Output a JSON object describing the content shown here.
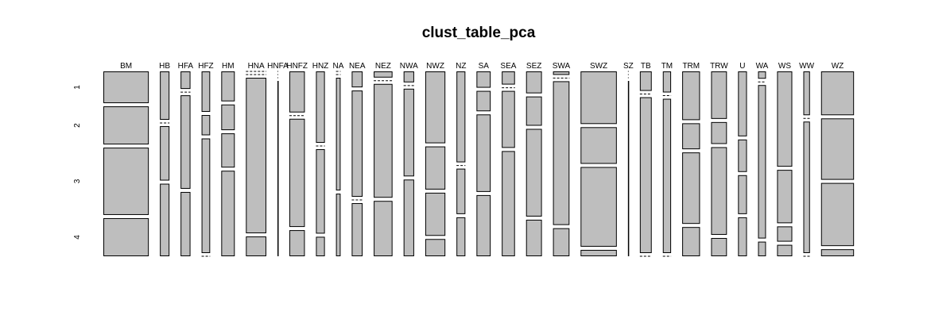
{
  "chart_data": {
    "type": "mosaic",
    "title": "clust_table_pca",
    "rows": [
      "1",
      "2",
      "3",
      "4"
    ],
    "columns": [
      {
        "name": "BM",
        "values": [
          25,
          30,
          53,
          30
        ]
      },
      {
        "name": "HB",
        "values": [
          8,
          0,
          9,
          12
        ]
      },
      {
        "name": "HFA",
        "values": [
          3,
          0,
          16,
          11
        ]
      },
      {
        "name": "HFZ",
        "values": [
          6,
          3,
          17,
          0
        ]
      },
      {
        "name": "HM",
        "values": [
          7,
          6,
          8,
          20
        ]
      },
      {
        "name": "HNA",
        "values": [
          0,
          0,
          55,
          7
        ]
      },
      {
        "name": "HNFA",
        "values": [
          0,
          0,
          0,
          1
        ]
      },
      {
        "name": "HNFZ",
        "values": [
          11,
          0,
          29,
          7
        ]
      },
      {
        "name": "HNZ",
        "values": [
          11,
          0,
          13,
          3
        ]
      },
      {
        "name": "NA",
        "values": [
          0,
          0,
          9,
          5
        ]
      },
      {
        "name": "NEA",
        "values": [
          3,
          20,
          0,
          10
        ]
      },
      {
        "name": "NEZ",
        "values": [
          2,
          0,
          37,
          18
        ]
      },
      {
        "name": "NWA",
        "values": [
          2,
          0,
          16,
          14
        ]
      },
      {
        "name": "NWZ",
        "values": [
          25,
          15,
          15,
          6
        ]
      },
      {
        "name": "NZ",
        "values": [
          14,
          0,
          7,
          6
        ]
      },
      {
        "name": "SA",
        "values": [
          4,
          5,
          19,
          15
        ]
      },
      {
        "name": "SEA",
        "values": [
          3,
          0,
          13,
          24
        ]
      },
      {
        "name": "SEZ",
        "values": [
          6,
          8,
          24,
          10
        ]
      },
      {
        "name": "SWA",
        "values": [
          1,
          0,
          41,
          8
        ]
      },
      {
        "name": "SWZ",
        "values": [
          33,
          23,
          50,
          4
        ]
      },
      {
        "name": "SZ",
        "values": [
          0,
          0,
          0,
          1
        ]
      },
      {
        "name": "TB",
        "values": [
          4,
          0,
          32,
          0
        ]
      },
      {
        "name": "TM",
        "values": [
          3,
          0,
          22,
          0
        ]
      },
      {
        "name": "TRM",
        "values": [
          15,
          8,
          22,
          9
        ]
      },
      {
        "name": "TRW",
        "values": [
          13,
          6,
          24,
          5
        ]
      },
      {
        "name": "U",
        "values": [
          10,
          5,
          6,
          6
        ]
      },
      {
        "name": "WA",
        "values": [
          1,
          0,
          21,
          2
        ]
      },
      {
        "name": "WS",
        "values": [
          25,
          14,
          4,
          3
        ]
      },
      {
        "name": "WW",
        "values": [
          5,
          0,
          15,
          0
        ]
      },
      {
        "name": "WZ",
        "values": [
          25,
          35,
          36,
          4
        ]
      }
    ]
  }
}
